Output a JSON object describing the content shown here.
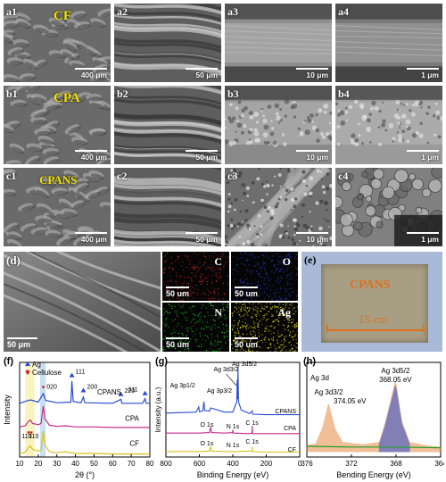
{
  "sem_rows": [
    {
      "sample": "CF",
      "cells": [
        {
          "label": "a1",
          "scale": "400 μm",
          "tex": "mesh"
        },
        {
          "label": "a2",
          "scale": "50 μm",
          "tex": "fibers"
        },
        {
          "label": "a3",
          "scale": "10 μm",
          "tex": "smooth"
        },
        {
          "label": "a4",
          "scale": "1 μm",
          "tex": "smooth-dark"
        }
      ]
    },
    {
      "sample": "CPA",
      "cells": [
        {
          "label": "b1",
          "scale": "400 μm",
          "tex": "mesh"
        },
        {
          "label": "b2",
          "scale": "50 μm",
          "tex": "fibers"
        },
        {
          "label": "b3",
          "scale": "10 μm",
          "tex": "bumpy"
        },
        {
          "label": "b4",
          "scale": "1 μm",
          "tex": "bumpy-light"
        }
      ]
    },
    {
      "sample": "CPANS",
      "cells": [
        {
          "label": "c1",
          "scale": "400 μm",
          "tex": "mesh"
        },
        {
          "label": "c2",
          "scale": "50 μm",
          "tex": "fibers"
        },
        {
          "label": "c3",
          "scale": "10 μm",
          "tex": "grainy"
        },
        {
          "label": "c4",
          "scale": "1 μm",
          "tex": "grains"
        }
      ]
    }
  ],
  "panel_d": {
    "label": "(d)",
    "scale": "50 μm"
  },
  "eds_maps": [
    {
      "element": "C",
      "scale": "50 um",
      "color": "#c42020"
    },
    {
      "element": "O",
      "scale": "50 um",
      "color": "#2a3cc8"
    },
    {
      "element": "N",
      "scale": "50 um",
      "color": "#1fbf2a"
    },
    {
      "element": "Ag",
      "scale": "50 um",
      "color": "#e6df20"
    }
  ],
  "panel_e": {
    "label": "(e)",
    "sample": "CPANS",
    "ruler": "15 cm",
    "accent": "#e0701a"
  },
  "panel_f": {
    "label": "(f)",
    "legend": [
      {
        "label": "Ag",
        "marker": "triangle"
      },
      {
        "label": "Cellulose",
        "marker": "heart"
      }
    ],
    "peak_labels": [
      "111",
      "200",
      "220",
      "311",
      "110",
      "110",
      "020"
    ],
    "curve_labels": [
      "CPANS",
      "CPA",
      "CF"
    ],
    "xlabel": "2θ (°)",
    "ylabel": "Intensity",
    "xticks": [
      "10",
      "20",
      "30",
      "40",
      "50",
      "60",
      "70",
      "80"
    ]
  },
  "panel_g": {
    "label": "(g)",
    "peak_labels": [
      "Ag 3p1/2",
      "Ag 3d3/2",
      "Ag 3d5/2",
      "Ag 3p3/2"
    ],
    "curve_labels": [
      "CPANS",
      "CPA",
      "CF"
    ],
    "core_labels": [
      "O 1s",
      "N 1s",
      "C 1s",
      "O 1s",
      "N 1s",
      "C 1s"
    ],
    "xlabel": "Binding Energy (eV)",
    "ylabel": "Intensity (a.u.)",
    "xticks": [
      "800",
      "600",
      "400",
      "200",
      "0"
    ]
  },
  "panel_h": {
    "label": "(h)",
    "title": "Ag 3d",
    "peak_labels": [
      "Ag 3d3/2",
      "374.05 eV",
      "Ag 3d5/2",
      "368.05 eV"
    ],
    "xlabel": "Bending Energy (eV)",
    "xticks": [
      "376",
      "372",
      "368",
      "364"
    ]
  },
  "chart_data": [
    {
      "type": "line",
      "title": "",
      "xlabel": "2θ (°)",
      "ylabel": "Intensity",
      "xlim": [
        10,
        80
      ],
      "series": [
        {
          "name": "CF",
          "color": "#d6c21a",
          "offset": 0.02,
          "points": [
            [
              10,
              0.03
            ],
            [
              13,
              0.05
            ],
            [
              14.8,
              0.14
            ],
            [
              15.8,
              0.16
            ],
            [
              17,
              0.1
            ],
            [
              20,
              0.07
            ],
            [
              21.5,
              0.09
            ],
            [
              22.7,
              0.42
            ],
            [
              23.6,
              0.18
            ],
            [
              26,
              0.06
            ],
            [
              30,
              0.04
            ],
            [
              34.5,
              0.06
            ],
            [
              40,
              0.03
            ],
            [
              50,
              0.03
            ],
            [
              60,
              0.02
            ],
            [
              70,
              0.02
            ],
            [
              80,
              0.02
            ]
          ]
        },
        {
          "name": "CPA",
          "color": "#c42a8a",
          "offset": 0.3,
          "points": [
            [
              10,
              0.03
            ],
            [
              13,
              0.05
            ],
            [
              14.8,
              0.13
            ],
            [
              15.8,
              0.15
            ],
            [
              17,
              0.09
            ],
            [
              20,
              0.07
            ],
            [
              21.5,
              0.09
            ],
            [
              22.7,
              0.4
            ],
            [
              23.6,
              0.17
            ],
            [
              26,
              0.06
            ],
            [
              30,
              0.04
            ],
            [
              34.5,
              0.05
            ],
            [
              40,
              0.03
            ],
            [
              50,
              0.03
            ],
            [
              60,
              0.02
            ],
            [
              70,
              0.02
            ],
            [
              80,
              0.02
            ]
          ]
        },
        {
          "name": "CPANS",
          "color": "#2a4ad0",
          "offset": 0.55,
          "points": [
            [
              10,
              0.03
            ],
            [
              14.8,
              0.08
            ],
            [
              15.8,
              0.09
            ],
            [
              20,
              0.05
            ],
            [
              22.7,
              0.2
            ],
            [
              24,
              0.08
            ],
            [
              30,
              0.04
            ],
            [
              37.5,
              0.05
            ],
            [
              38.1,
              0.42
            ],
            [
              38.8,
              0.06
            ],
            [
              43,
              0.04
            ],
            [
              44.3,
              0.14
            ],
            [
              45,
              0.04
            ],
            [
              60,
              0.03
            ],
            [
              64.4,
              0.1
            ],
            [
              65,
              0.03
            ],
            [
              76,
              0.03
            ],
            [
              77.4,
              0.11
            ],
            [
              78,
              0.03
            ],
            [
              80,
              0.03
            ]
          ]
        }
      ]
    },
    {
      "type": "line",
      "title": "",
      "xlabel": "Binding Energy (eV)",
      "ylabel": "Intensity (a.u.)",
      "xlim": [
        800,
        0
      ],
      "series": [
        {
          "name": "CF",
          "color": "#d6c21a",
          "offset": 0.03,
          "points": [
            [
              800,
              0.05
            ],
            [
              700,
              0.05
            ],
            [
              600,
              0.05
            ],
            [
              540,
              0.06
            ],
            [
              532,
              0.15
            ],
            [
              528,
              0.06
            ],
            [
              450,
              0.05
            ],
            [
              400,
              0.05
            ],
            [
              285,
              0.06
            ],
            [
              284,
              0.14
            ],
            [
              282,
              0.05
            ],
            [
              200,
              0.04
            ],
            [
              100,
              0.04
            ],
            [
              0,
              0.04
            ]
          ]
        },
        {
          "name": "CPA",
          "color": "#c42a8a",
          "offset": 0.22,
          "points": [
            [
              800,
              0.06
            ],
            [
              700,
              0.06
            ],
            [
              600,
              0.06
            ],
            [
              540,
              0.07
            ],
            [
              532,
              0.18
            ],
            [
              528,
              0.07
            ],
            [
              450,
              0.06
            ],
            [
              402,
              0.07
            ],
            [
              400,
              0.12
            ],
            [
              398,
              0.06
            ],
            [
              300,
              0.05
            ],
            [
              285,
              0.06
            ],
            [
              284,
              0.2
            ],
            [
              282,
              0.05
            ],
            [
              200,
              0.05
            ],
            [
              100,
              0.05
            ],
            [
              0,
              0.05
            ]
          ]
        },
        {
          "name": "CPANS",
          "color": "#2a4ad0",
          "offset": 0.42,
          "points": [
            [
              800,
              0.08
            ],
            [
              700,
              0.09
            ],
            [
              620,
              0.1
            ],
            [
              604,
              0.2
            ],
            [
              600,
              0.11
            ],
            [
              580,
              0.12
            ],
            [
              573,
              0.3
            ],
            [
              568,
              0.13
            ],
            [
              540,
              0.12
            ],
            [
              532,
              0.18
            ],
            [
              450,
              0.1
            ],
            [
              400,
              0.1
            ],
            [
              376,
              0.3
            ],
            [
              374,
              0.72
            ],
            [
              372,
              0.35
            ],
            [
              369,
              0.95
            ],
            [
              366,
              0.3
            ],
            [
              350,
              0.14
            ],
            [
              300,
              0.07
            ],
            [
              284,
              0.12
            ],
            [
              282,
              0.06
            ],
            [
              200,
              0.05
            ],
            [
              100,
              0.05
            ],
            [
              0,
              0.05
            ]
          ]
        }
      ]
    },
    {
      "type": "line",
      "title": "Ag 3d",
      "xlabel": "Bending Energy (eV)",
      "ylabel": "",
      "xlim": [
        376,
        364
      ],
      "series": [
        {
          "name": "",
          "color": "#e0701a",
          "points": [
            [
              376,
              0.08
            ],
            [
              375.2,
              0.1
            ],
            [
              374.6,
              0.3
            ],
            [
              374.05,
              0.62
            ],
            [
              373.5,
              0.3
            ],
            [
              372.8,
              0.12
            ],
            [
              371,
              0.09
            ],
            [
              369.5,
              0.12
            ],
            [
              369,
              0.35
            ],
            [
              368.05,
              0.92
            ],
            [
              367.5,
              0.4
            ],
            [
              366.8,
              0.12
            ],
            [
              365,
              0.07
            ],
            [
              364,
              0.06
            ]
          ]
        },
        {
          "name": "",
          "color": "#2a4ad0",
          "points": [
            [
              369.5,
              0.1
            ],
            [
              369,
              0.32
            ],
            [
              368.05,
              0.86
            ],
            [
              367.5,
              0.36
            ],
            [
              366.8,
              0.1
            ]
          ]
        },
        {
          "name": "",
          "color": "#1fa02a",
          "points": [
            [
              376,
              0.07
            ],
            [
              372,
              0.06
            ],
            [
              368,
              0.06
            ],
            [
              364,
              0.05
            ]
          ]
        }
      ]
    }
  ]
}
